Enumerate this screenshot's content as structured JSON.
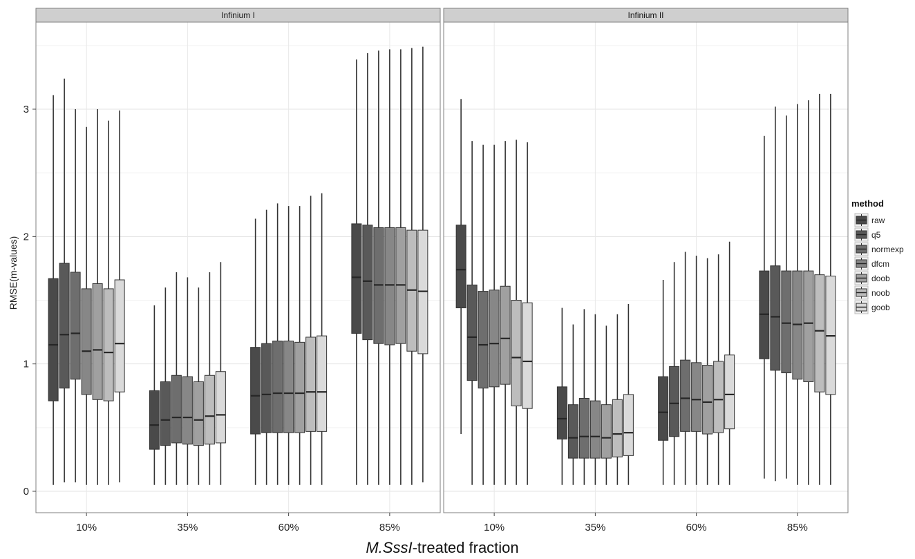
{
  "chart_data": {
    "type": "boxplot",
    "xlabel_italic": "M.SssI",
    "xlabel_rest": "-treated fraction",
    "ylabel": "RMSE(m-values)",
    "categories": [
      "10%",
      "35%",
      "60%",
      "85%"
    ],
    "ylim": [
      -0.15,
      3.65
    ],
    "yticks": [
      0,
      1,
      2,
      3
    ],
    "grid": true,
    "legend": {
      "title": "method",
      "position": "right",
      "entries": [
        "raw",
        "q5",
        "normexp",
        "dfcm",
        "doob",
        "noob",
        "goob"
      ]
    },
    "method_colors": [
      "#4a4a4a",
      "#595959",
      "#6e6e6e",
      "#878787",
      "#a0a0a0",
      "#bdbdbd",
      "#dadada"
    ],
    "panels": [
      {
        "title": "Infinium I",
        "groups": [
          {
            "category": "10%",
            "boxes": [
              {
                "method": "raw",
                "min": 0.05,
                "q1": 0.71,
                "median": 1.15,
                "q3": 1.67,
                "max": 3.11
              },
              {
                "method": "q5",
                "min": 0.07,
                "q1": 0.81,
                "median": 1.23,
                "q3": 1.79,
                "max": 3.24
              },
              {
                "method": "normexp",
                "min": 0.07,
                "q1": 0.88,
                "median": 1.24,
                "q3": 1.72,
                "max": 3.0
              },
              {
                "method": "dfcm",
                "min": 0.05,
                "q1": 0.76,
                "median": 1.1,
                "q3": 1.59,
                "max": 2.86
              },
              {
                "method": "doob",
                "min": 0.05,
                "q1": 0.72,
                "median": 1.11,
                "q3": 1.63,
                "max": 3.0
              },
              {
                "method": "noob",
                "min": 0.05,
                "q1": 0.71,
                "median": 1.09,
                "q3": 1.59,
                "max": 2.91
              },
              {
                "method": "goob",
                "min": 0.07,
                "q1": 0.78,
                "median": 1.16,
                "q3": 1.66,
                "max": 2.99
              }
            ]
          },
          {
            "category": "35%",
            "boxes": [
              {
                "method": "raw",
                "min": 0.05,
                "q1": 0.33,
                "median": 0.52,
                "q3": 0.79,
                "max": 1.46
              },
              {
                "method": "q5",
                "min": 0.05,
                "q1": 0.36,
                "median": 0.56,
                "q3": 0.86,
                "max": 1.6
              },
              {
                "method": "normexp",
                "min": 0.05,
                "q1": 0.38,
                "median": 0.58,
                "q3": 0.91,
                "max": 1.72
              },
              {
                "method": "dfcm",
                "min": 0.05,
                "q1": 0.37,
                "median": 0.58,
                "q3": 0.9,
                "max": 1.68
              },
              {
                "method": "doob",
                "min": 0.05,
                "q1": 0.36,
                "median": 0.56,
                "q3": 0.86,
                "max": 1.6
              },
              {
                "method": "noob",
                "min": 0.05,
                "q1": 0.37,
                "median": 0.59,
                "q3": 0.91,
                "max": 1.72
              },
              {
                "method": "goob",
                "min": 0.05,
                "q1": 0.38,
                "median": 0.6,
                "q3": 0.94,
                "max": 1.8
              }
            ]
          },
          {
            "category": "60%",
            "boxes": [
              {
                "method": "raw",
                "min": 0.05,
                "q1": 0.45,
                "median": 0.75,
                "q3": 1.13,
                "max": 2.14
              },
              {
                "method": "q5",
                "min": 0.05,
                "q1": 0.46,
                "median": 0.76,
                "q3": 1.16,
                "max": 2.21
              },
              {
                "method": "normexp",
                "min": 0.05,
                "q1": 0.46,
                "median": 0.77,
                "q3": 1.18,
                "max": 2.26
              },
              {
                "method": "dfcm",
                "min": 0.05,
                "q1": 0.46,
                "median": 0.77,
                "q3": 1.18,
                "max": 2.24
              },
              {
                "method": "doob",
                "min": 0.05,
                "q1": 0.46,
                "median": 0.77,
                "q3": 1.17,
                "max": 2.24
              },
              {
                "method": "noob",
                "min": 0.05,
                "q1": 0.47,
                "median": 0.78,
                "q3": 1.21,
                "max": 2.32
              },
              {
                "method": "goob",
                "min": 0.05,
                "q1": 0.47,
                "median": 0.78,
                "q3": 1.22,
                "max": 2.34
              }
            ]
          },
          {
            "category": "85%",
            "boxes": [
              {
                "method": "raw",
                "min": 0.05,
                "q1": 1.24,
                "median": 1.68,
                "q3": 2.1,
                "max": 3.39
              },
              {
                "method": "q5",
                "min": 0.05,
                "q1": 1.19,
                "median": 1.65,
                "q3": 2.09,
                "max": 3.44
              },
              {
                "method": "normexp",
                "min": 0.05,
                "q1": 1.16,
                "median": 1.62,
                "q3": 2.07,
                "max": 3.46
              },
              {
                "method": "dfcm",
                "min": 0.05,
                "q1": 1.15,
                "median": 1.62,
                "q3": 2.07,
                "max": 3.47
              },
              {
                "method": "doob",
                "min": 0.05,
                "q1": 1.16,
                "median": 1.62,
                "q3": 2.07,
                "max": 3.47
              },
              {
                "method": "noob",
                "min": 0.05,
                "q1": 1.1,
                "median": 1.58,
                "q3": 2.05,
                "max": 3.48
              },
              {
                "method": "goob",
                "min": 0.07,
                "q1": 1.08,
                "median": 1.57,
                "q3": 2.05,
                "max": 3.49
              }
            ]
          }
        ]
      },
      {
        "title": "Infinium II",
        "groups": [
          {
            "category": "10%",
            "boxes": [
              {
                "method": "raw",
                "min": 0.45,
                "q1": 1.44,
                "median": 1.74,
                "q3": 2.09,
                "max": 3.08
              },
              {
                "method": "q5",
                "min": 0.05,
                "q1": 0.87,
                "median": 1.21,
                "q3": 1.62,
                "max": 2.75
              },
              {
                "method": "normexp",
                "min": 0.05,
                "q1": 0.81,
                "median": 1.15,
                "q3": 1.57,
                "max": 2.72
              },
              {
                "method": "dfcm",
                "min": 0.05,
                "q1": 0.82,
                "median": 1.16,
                "q3": 1.58,
                "max": 2.72
              },
              {
                "method": "doob",
                "min": 0.05,
                "q1": 0.84,
                "median": 1.2,
                "q3": 1.61,
                "max": 2.75
              },
              {
                "method": "noob",
                "min": 0.05,
                "q1": 0.67,
                "median": 1.05,
                "q3": 1.5,
                "max": 2.76
              },
              {
                "method": "goob",
                "min": 0.05,
                "q1": 0.65,
                "median": 1.02,
                "q3": 1.48,
                "max": 2.74
              }
            ]
          },
          {
            "category": "35%",
            "boxes": [
              {
                "method": "raw",
                "min": 0.05,
                "q1": 0.41,
                "median": 0.57,
                "q3": 0.82,
                "max": 1.44
              },
              {
                "method": "q5",
                "min": 0.05,
                "q1": 0.26,
                "median": 0.42,
                "q3": 0.68,
                "max": 1.31
              },
              {
                "method": "normexp",
                "min": 0.05,
                "q1": 0.26,
                "median": 0.43,
                "q3": 0.73,
                "max": 1.43
              },
              {
                "method": "dfcm",
                "min": 0.05,
                "q1": 0.26,
                "median": 0.43,
                "q3": 0.71,
                "max": 1.39
              },
              {
                "method": "doob",
                "min": 0.05,
                "q1": 0.26,
                "median": 0.42,
                "q3": 0.68,
                "max": 1.3
              },
              {
                "method": "noob",
                "min": 0.05,
                "q1": 0.27,
                "median": 0.45,
                "q3": 0.72,
                "max": 1.39
              },
              {
                "method": "goob",
                "min": 0.05,
                "q1": 0.28,
                "median": 0.46,
                "q3": 0.76,
                "max": 1.47
              }
            ]
          },
          {
            "category": "60%",
            "boxes": [
              {
                "method": "raw",
                "min": 0.05,
                "q1": 0.4,
                "median": 0.62,
                "q3": 0.9,
                "max": 1.66
              },
              {
                "method": "q5",
                "min": 0.05,
                "q1": 0.43,
                "median": 0.69,
                "q3": 0.98,
                "max": 1.8
              },
              {
                "method": "normexp",
                "min": 0.05,
                "q1": 0.47,
                "median": 0.73,
                "q3": 1.03,
                "max": 1.88
              },
              {
                "method": "dfcm",
                "min": 0.05,
                "q1": 0.47,
                "median": 0.72,
                "q3": 1.01,
                "max": 1.85
              },
              {
                "method": "doob",
                "min": 0.05,
                "q1": 0.45,
                "median": 0.7,
                "q3": 0.99,
                "max": 1.83
              },
              {
                "method": "noob",
                "min": 0.05,
                "q1": 0.46,
                "median": 0.72,
                "q3": 1.02,
                "max": 1.86
              },
              {
                "method": "goob",
                "min": 0.05,
                "q1": 0.49,
                "median": 0.76,
                "q3": 1.07,
                "max": 1.96
              }
            ]
          },
          {
            "category": "85%",
            "boxes": [
              {
                "method": "raw",
                "min": 0.1,
                "q1": 1.04,
                "median": 1.39,
                "q3": 1.73,
                "max": 2.79
              },
              {
                "method": "q5",
                "min": 0.08,
                "q1": 0.95,
                "median": 1.37,
                "q3": 1.77,
                "max": 3.02
              },
              {
                "method": "normexp",
                "min": 0.1,
                "q1": 0.93,
                "median": 1.32,
                "q3": 1.73,
                "max": 2.95
              },
              {
                "method": "dfcm",
                "min": 0.05,
                "q1": 0.88,
                "median": 1.31,
                "q3": 1.73,
                "max": 3.04
              },
              {
                "method": "doob",
                "min": 0.05,
                "q1": 0.86,
                "median": 1.32,
                "q3": 1.73,
                "max": 3.07
              },
              {
                "method": "noob",
                "min": 0.05,
                "q1": 0.78,
                "median": 1.26,
                "q3": 1.7,
                "max": 3.12
              },
              {
                "method": "goob",
                "min": 0.05,
                "q1": 0.76,
                "median": 1.22,
                "q3": 1.69,
                "max": 3.12
              }
            ]
          }
        ]
      }
    ]
  }
}
